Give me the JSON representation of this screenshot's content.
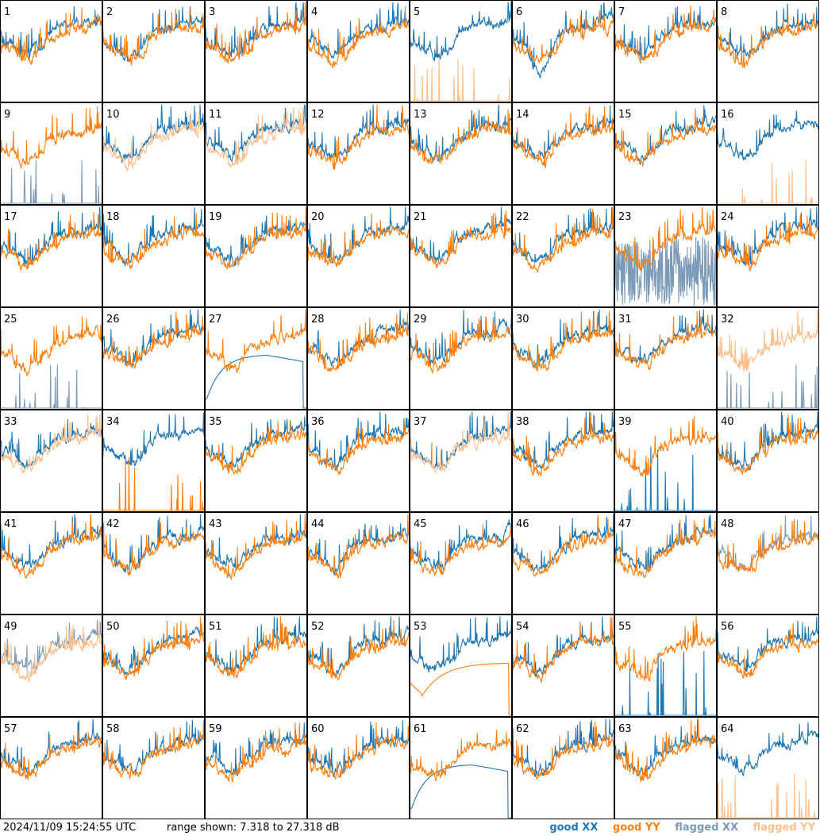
{
  "chart_data": {
    "type": "line",
    "layout": "small-multiples",
    "panel_labels": [
      "1",
      "2",
      "3",
      "4",
      "5",
      "6",
      "7",
      "8",
      "9",
      "10",
      "11",
      "12",
      "13",
      "14",
      "15",
      "16",
      "17",
      "18",
      "19",
      "20",
      "21",
      "22",
      "23",
      "24",
      "25",
      "26",
      "27",
      "28",
      "29",
      "30",
      "31",
      "32",
      "33",
      "34",
      "35",
      "36",
      "37",
      "38",
      "39",
      "40",
      "41",
      "42",
      "43",
      "44",
      "45",
      "46",
      "47",
      "48",
      "49",
      "50",
      "51",
      "52",
      "53",
      "54",
      "55",
      "56",
      "57",
      "58",
      "59",
      "60",
      "61",
      "62",
      "63",
      "64"
    ],
    "ylim": [
      7.318,
      27.318
    ],
    "yunit": "dB",
    "series_legend": [
      "good XX",
      "good YY",
      "flagged XX",
      "flagged YY"
    ],
    "colors": {
      "good_xx": "#1f77b4",
      "good_yy": "#ff7f0e",
      "flagged_xx": "#7c9bb8",
      "flagged_yy": "#ffbf8c"
    },
    "panel_styles": {
      "5": {
        "xx": "good",
        "yy": "spikes"
      },
      "6": {
        "xx": "good",
        "yy": "good",
        "xx_dip": true
      },
      "9": {
        "xx": "flag_spikes",
        "yy": "good"
      },
      "10": {
        "xx": "good",
        "yy": "flagged"
      },
      "11": {
        "xx": "good",
        "yy": "flagged"
      },
      "16": {
        "xx": "good",
        "yy": "spikes"
      },
      "23": {
        "xx": "flagged_noisy",
        "yy": "good"
      },
      "25": {
        "xx": "flag_spikes",
        "yy": "good"
      },
      "27": {
        "xx": "smooth_curve",
        "yy": "good"
      },
      "32": {
        "xx": "flag_spikes",
        "yy": "flagged"
      },
      "33": {
        "xx": "good",
        "yy": "flagged"
      },
      "34": {
        "xx": "good",
        "yy": "spikes_solid"
      },
      "37": {
        "xx": "good",
        "yy": "flagged"
      },
      "39": {
        "xx": "spikes_solid",
        "yy": "good"
      },
      "48": {
        "xx": "flagged",
        "yy": "good"
      },
      "49": {
        "xx": "flagged",
        "yy": "flagged"
      },
      "53": {
        "xx": "good",
        "yy": "smooth_curve"
      },
      "55": {
        "xx": "spikes_solid",
        "yy": "good"
      },
      "61": {
        "xx": "smooth_curve",
        "yy": "good"
      },
      "64": {
        "xx": "good",
        "yy": "spikes"
      }
    }
  },
  "footer": {
    "timestamp": "2024/11/09 15:24:55 UTC",
    "range_text": "range shown: 7.318 to 27.318 dB",
    "legend": {
      "good_xx": "good XX",
      "good_yy": "good YY",
      "flagged_xx": "flagged XX",
      "flagged_yy": "flagged YY"
    }
  }
}
